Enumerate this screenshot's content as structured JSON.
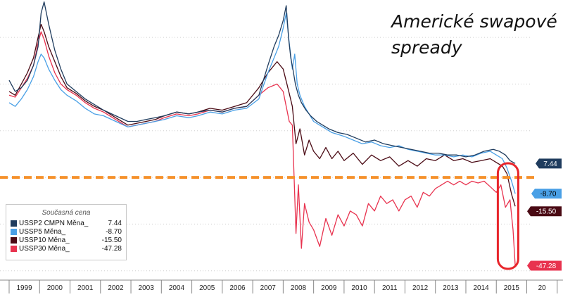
{
  "chart_data": {
    "type": "line",
    "title_lines": [
      "Americké swapové",
      "spready"
    ],
    "x_ticks": [
      "1999",
      "2000",
      "2001",
      "2002",
      "2003",
      "2004",
      "2005",
      "2006",
      "2007",
      "2008",
      "2009",
      "2010",
      "2011",
      "2012",
      "2013",
      "2014",
      "2015",
      "20"
    ],
    "xlim": [
      1998.7,
      2016.15
    ],
    "ylim": [
      -55,
      95
    ],
    "reference_line": {
      "value": 0,
      "color": "#f5902a",
      "style": "dashed"
    },
    "highlight": {
      "x_from": 2015.05,
      "x_to": 2015.72,
      "color": "#e8252b"
    },
    "series": [
      {
        "key": "s30",
        "color": "#e8334f",
        "x": [
          1999.0,
          1999.2,
          1999.4,
          1999.6,
          1999.8,
          1999.95,
          2000.05,
          2000.15,
          2000.3,
          2000.5,
          2000.7,
          2000.9,
          2001.2,
          2001.5,
          2001.8,
          2002.1,
          2002.5,
          2002.9,
          2003.2,
          2003.5,
          2003.8,
          2004.1,
          2004.5,
          2004.9,
          2005.2,
          2005.6,
          2006.0,
          2006.4,
          2006.8,
          2007.2,
          2007.5,
          2007.8,
          2008.0,
          2008.2,
          2008.3,
          2008.42,
          2008.5,
          2008.6,
          2008.7,
          2008.85,
          2009.0,
          2009.2,
          2009.4,
          2009.6,
          2009.8,
          2010.0,
          2010.2,
          2010.4,
          2010.6,
          2010.8,
          2011.0,
          2011.2,
          2011.4,
          2011.6,
          2011.8,
          2012.0,
          2012.2,
          2012.4,
          2012.6,
          2012.8,
          2013.0,
          2013.2,
          2013.4,
          2013.6,
          2013.8,
          2014.0,
          2014.2,
          2014.4,
          2014.6,
          2014.8,
          2015.0,
          2015.15,
          2015.3,
          2015.45,
          2015.55,
          2015.62
        ],
        "y": [
          44,
          43,
          48,
          53,
          60,
          72,
          78,
          74,
          65,
          56,
          50,
          47,
          44,
          40,
          37,
          35,
          31,
          27,
          28,
          29,
          30,
          32,
          34,
          33,
          34,
          36,
          35,
          37,
          38,
          44,
          48,
          50,
          46,
          30,
          28,
          -30,
          -4,
          -38,
          -14,
          -24,
          -28,
          -37,
          -22,
          -31,
          -20,
          -26,
          -18,
          -20,
          -26,
          -14,
          -18,
          -10,
          -14,
          -12,
          -18,
          -12,
          -10,
          -16,
          -8,
          -10,
          -6,
          -4,
          -2,
          -4,
          -2,
          -4,
          -2,
          -3,
          -2,
          -5,
          -8,
          -4,
          -16,
          -12,
          -28,
          -47.28
        ]
      },
      {
        "key": "s10",
        "color": "#4a0a14",
        "x": [
          1999.0,
          1999.2,
          1999.4,
          1999.6,
          1999.8,
          1999.95,
          2000.05,
          2000.15,
          2000.3,
          2000.5,
          2000.7,
          2000.9,
          2001.2,
          2001.5,
          2001.8,
          2002.1,
          2002.5,
          2002.9,
          2003.2,
          2003.5,
          2003.8,
          2004.1,
          2004.5,
          2004.9,
          2005.2,
          2005.6,
          2006.0,
          2006.4,
          2006.8,
          2007.2,
          2007.5,
          2007.8,
          2008.0,
          2008.2,
          2008.3,
          2008.42,
          2008.55,
          2008.7,
          2008.85,
          2009.0,
          2009.2,
          2009.4,
          2009.6,
          2009.8,
          2010.0,
          2010.3,
          2010.6,
          2010.9,
          2011.2,
          2011.5,
          2011.8,
          2012.1,
          2012.4,
          2012.7,
          2013.0,
          2013.3,
          2013.6,
          2013.9,
          2014.2,
          2014.5,
          2014.8,
          2015.0,
          2015.2,
          2015.35,
          2015.5,
          2015.62
        ],
        "y": [
          46,
          44,
          50,
          56,
          64,
          75,
          82,
          78,
          70,
          62,
          54,
          48,
          45,
          41,
          38,
          36,
          32,
          28,
          29,
          30,
          31,
          33,
          35,
          34,
          35,
          37,
          36,
          38,
          40,
          48,
          56,
          62,
          58,
          45,
          38,
          18,
          26,
          12,
          20,
          14,
          10,
          16,
          10,
          14,
          9,
          13,
          7,
          12,
          9,
          11,
          6,
          9,
          6,
          10,
          9,
          12,
          9,
          10,
          8,
          9,
          10,
          8,
          6,
          2,
          -9,
          -15.5
        ]
      },
      {
        "key": "s5",
        "color": "#4aa0e6",
        "x": [
          1999.0,
          1999.2,
          1999.4,
          1999.6,
          1999.8,
          1999.95,
          2000.05,
          2000.15,
          2000.3,
          2000.5,
          2000.7,
          2000.9,
          2001.2,
          2001.5,
          2001.8,
          2002.1,
          2002.5,
          2002.9,
          2003.2,
          2003.5,
          2003.8,
          2004.1,
          2004.5,
          2004.9,
          2005.2,
          2005.6,
          2006.0,
          2006.4,
          2006.8,
          2007.2,
          2007.5,
          2007.7,
          2007.85,
          2008.0,
          2008.1,
          2008.2,
          2008.3,
          2008.38,
          2008.46,
          2008.55,
          2008.7,
          2008.85,
          2009.0,
          2009.2,
          2009.4,
          2009.6,
          2009.8,
          2010.0,
          2010.3,
          2010.6,
          2010.9,
          2011.2,
          2011.5,
          2011.8,
          2012.1,
          2012.4,
          2012.7,
          2013.0,
          2013.3,
          2013.6,
          2013.9,
          2014.2,
          2014.5,
          2014.8,
          2015.0,
          2015.2,
          2015.35,
          2015.5,
          2015.62
        ],
        "y": [
          40,
          38,
          42,
          47,
          54,
          62,
          66,
          64,
          58,
          52,
          47,
          44,
          41,
          37,
          34,
          33,
          30,
          27,
          28,
          29,
          30,
          31,
          33,
          32,
          33,
          35,
          34,
          36,
          37,
          42,
          56,
          64,
          70,
          80,
          88,
          72,
          58,
          66,
          50,
          44,
          38,
          34,
          30,
          28,
          26,
          24,
          23,
          22,
          20,
          18,
          19,
          17,
          16,
          17,
          15,
          14,
          13,
          12,
          12,
          11,
          12,
          11,
          13,
          14,
          12,
          10,
          5,
          -2,
          -8.7
        ]
      },
      {
        "key": "s2",
        "color": "#1f3c5e",
        "x": [
          1999.0,
          1999.2,
          1999.4,
          1999.6,
          1999.8,
          1999.95,
          2000.05,
          2000.15,
          2000.3,
          2000.5,
          2000.7,
          2000.9,
          2001.2,
          2001.5,
          2001.8,
          2002.1,
          2002.5,
          2002.9,
          2003.2,
          2003.5,
          2003.8,
          2004.1,
          2004.5,
          2004.9,
          2005.2,
          2005.6,
          2006.0,
          2006.4,
          2006.8,
          2007.2,
          2007.5,
          2007.7,
          2007.85,
          2008.0,
          2008.1,
          2008.18,
          2008.25,
          2008.32,
          2008.4,
          2008.5,
          2008.6,
          2008.75,
          2008.9,
          2009.1,
          2009.3,
          2009.5,
          2009.8,
          2010.1,
          2010.4,
          2010.7,
          2011.0,
          2011.3,
          2011.6,
          2011.9,
          2012.2,
          2012.5,
          2012.8,
          2013.1,
          2013.4,
          2013.7,
          2014.0,
          2014.3,
          2014.6,
          2014.9,
          2015.1,
          2015.3,
          2015.45,
          2015.62
        ],
        "y": [
          52,
          46,
          48,
          52,
          60,
          70,
          88,
          94,
          82,
          68,
          58,
          50,
          46,
          42,
          39,
          36,
          33,
          30,
          30,
          31,
          32,
          33,
          35,
          34,
          35,
          36,
          35,
          37,
          38,
          44,
          60,
          70,
          76,
          84,
          92,
          74,
          64,
          58,
          50,
          44,
          40,
          36,
          33,
          30,
          28,
          26,
          24,
          23,
          21,
          19,
          20,
          18,
          17,
          16,
          15,
          14,
          13,
          13,
          12,
          12,
          11,
          12,
          14,
          15,
          14,
          12,
          9,
          7.44
        ]
      }
    ],
    "right_labels": [
      {
        "text": "7.44",
        "value": 7.44,
        "bg": "#1f3c5e",
        "fg": "#ffffff"
      },
      {
        "text": "-8.70",
        "value": -8.7,
        "bg": "#4aa0e6",
        "fg": "#000000"
      },
      {
        "text": "-15.50",
        "value": -15.5,
        "bg": "#4a0a14",
        "fg": "#ffffff"
      },
      {
        "text": "-47.28",
        "value": -47.28,
        "bg": "#e8334f",
        "fg": "#ffffff"
      }
    ],
    "legend": {
      "header": "Současná cena",
      "entries": [
        {
          "name": "USSP2 CMPN Měna_",
          "value": "7.44",
          "color": "#1f3c5e"
        },
        {
          "name": "USSP5 Měna_",
          "value": "-8.70",
          "color": "#4aa0e6"
        },
        {
          "name": "USSP10 Měna_",
          "value": "-15.50",
          "color": "#4a0a14"
        },
        {
          "name": "USSP30 Měna_",
          "value": "-47.28",
          "color": "#e8334f"
        }
      ]
    }
  }
}
